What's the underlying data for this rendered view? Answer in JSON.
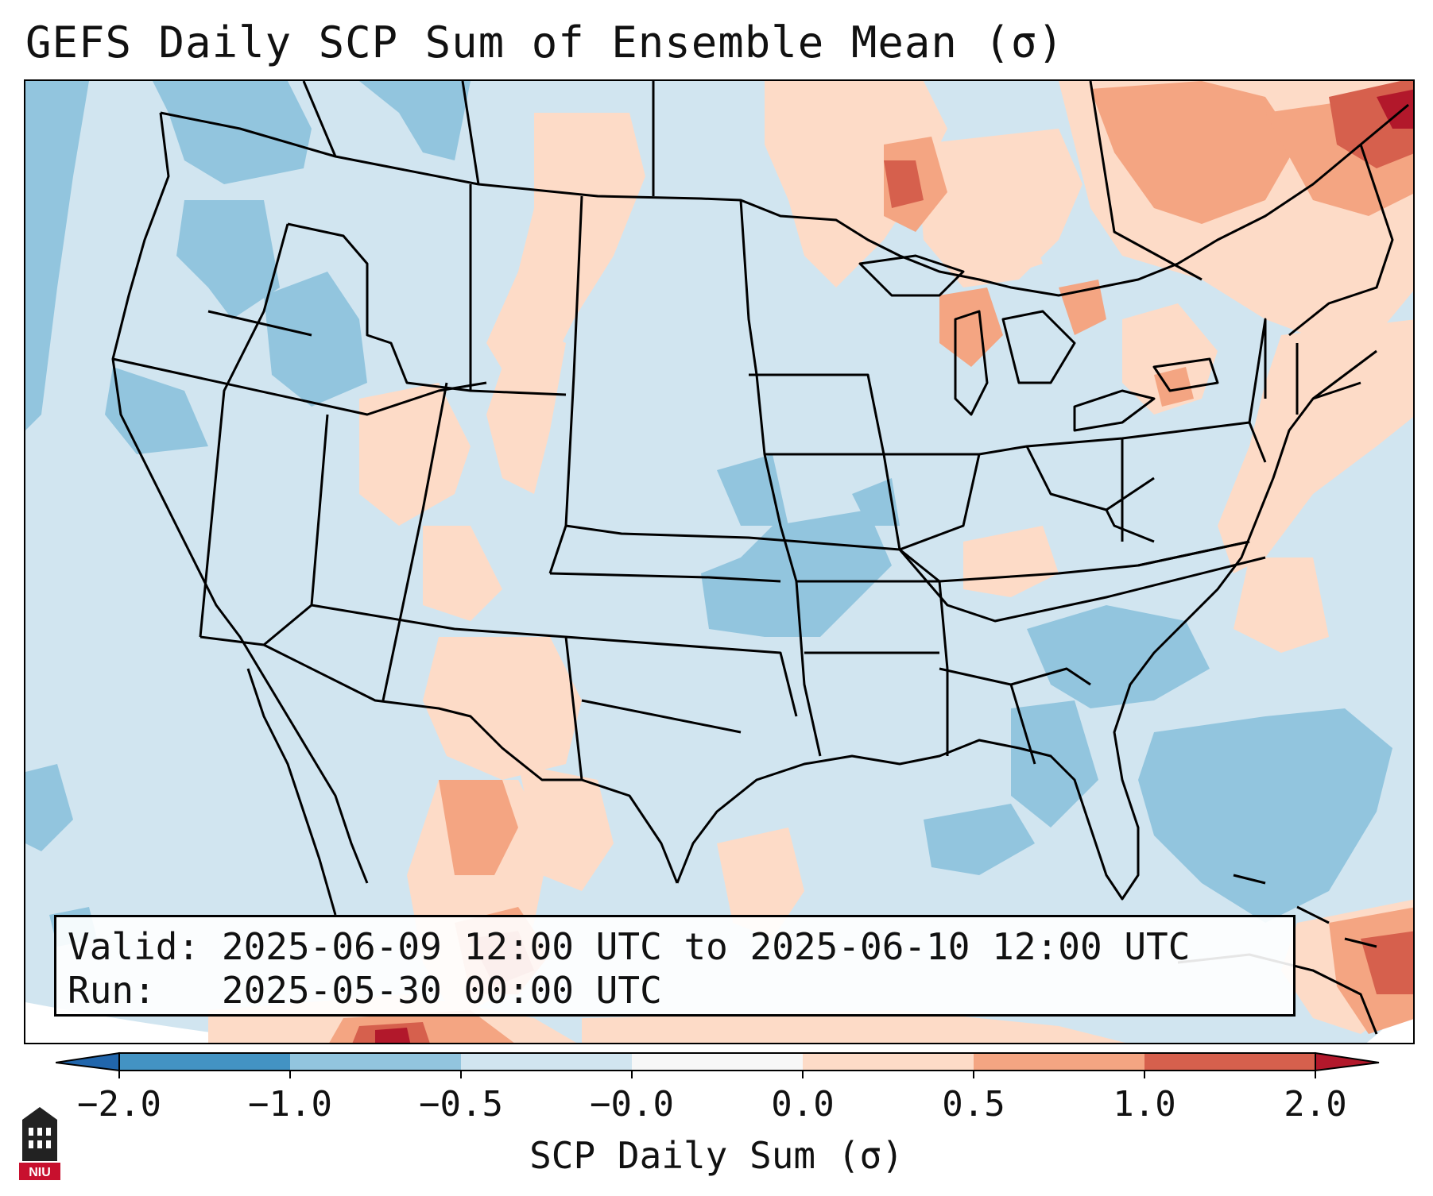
{
  "title": "GEFS Daily SCP Sum of Ensemble Mean (σ)",
  "info": {
    "valid_label": "Valid:",
    "valid_value": "2025-06-09 12:00 UTC to 2025-06-10 12:00 UTC",
    "run_label": "Run:",
    "run_value": "2025-05-30 00:00 UTC"
  },
  "colorbar": {
    "label": "SCP Daily Sum (σ)",
    "ticks": [
      "−2.0",
      "−1.0",
      "−0.5",
      "−0.0",
      "0.0",
      "0.5",
      "1.0",
      "2.0"
    ],
    "bins": [
      {
        "from": -2.0,
        "to": -1.0,
        "color": "#4393c3"
      },
      {
        "from": -1.0,
        "to": -0.5,
        "color": "#92c5de"
      },
      {
        "from": -0.5,
        "to": 0.0,
        "color": "#d1e5f0"
      },
      {
        "from": 0.0,
        "to": 0.0,
        "color": "#f7f7f7"
      },
      {
        "from": 0.0,
        "to": 0.5,
        "color": "#fddbc7"
      },
      {
        "from": 0.5,
        "to": 1.0,
        "color": "#f4a582"
      },
      {
        "from": 1.0,
        "to": 2.0,
        "color": "#d6604d"
      }
    ],
    "extend_low_color": "#2166ac",
    "extend_high_color": "#b2182b"
  },
  "colors": {
    "background_field": "#d1e5f0",
    "neg_medium": "#92c5de",
    "pos_light": "#fddbc7",
    "pos_medium": "#f4a582",
    "pos_strong": "#d6604d",
    "pos_extreme": "#b2182b",
    "boundary": "#000000"
  },
  "logo": {
    "text": "NIU",
    "icon": "university-tower-logo-icon"
  }
}
